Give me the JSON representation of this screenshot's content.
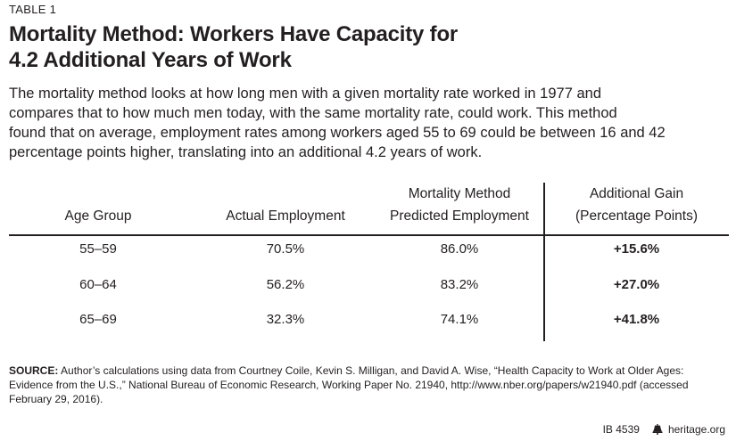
{
  "label": "TABLE 1",
  "title": {
    "line1": "Mortality Method: Workers Have Capacity for",
    "line2": "4.2 Additional Years of Work"
  },
  "intro": {
    "line1": "The mortality method looks at how long men with a given mortality rate worked in 1977 and",
    "line2": "compares that to how much men today, with the same mortality rate, could work. This method",
    "line3": "found that on average, employment rates among workers aged 55 to 69 could be between 16 and 42",
    "line4": "percentage points higher, translating into an additional 4.2 years of work."
  },
  "table": {
    "headers": {
      "age_group": "Age Group",
      "actual": "Actual Employment",
      "predicted_line1": "Mortality Method",
      "predicted_line2": "Predicted Employment",
      "gain_line1": "Additional Gain",
      "gain_line2": "(Percentage Points)"
    },
    "rows": [
      {
        "age": "55–59",
        "actual": "70.5%",
        "predicted": "86.0%",
        "gain": "+15.6%"
      },
      {
        "age": "60–64",
        "actual": "56.2%",
        "predicted": "83.2%",
        "gain": "+27.0%"
      },
      {
        "age": "65–69",
        "actual": "32.3%",
        "predicted": "74.1%",
        "gain": "+41.8%"
      }
    ]
  },
  "source": {
    "label": "SOURCE:",
    "line1": "Author’s calculations using data from Courtney Coile, Kevin S. Milligan, and David A. Wise, “Health Capacity to Work at Older Ages:",
    "line2": "Evidence from the U.S.,” National Bureau of Economic Research, Working Paper No. 21940, http://www.nber.org/papers/w21940.pdf (accessed",
    "line3": "February 29, 2016)."
  },
  "footer": {
    "id": "IB 4539",
    "icon": "liberty-bell-icon",
    "site": "heritage.org"
  }
}
